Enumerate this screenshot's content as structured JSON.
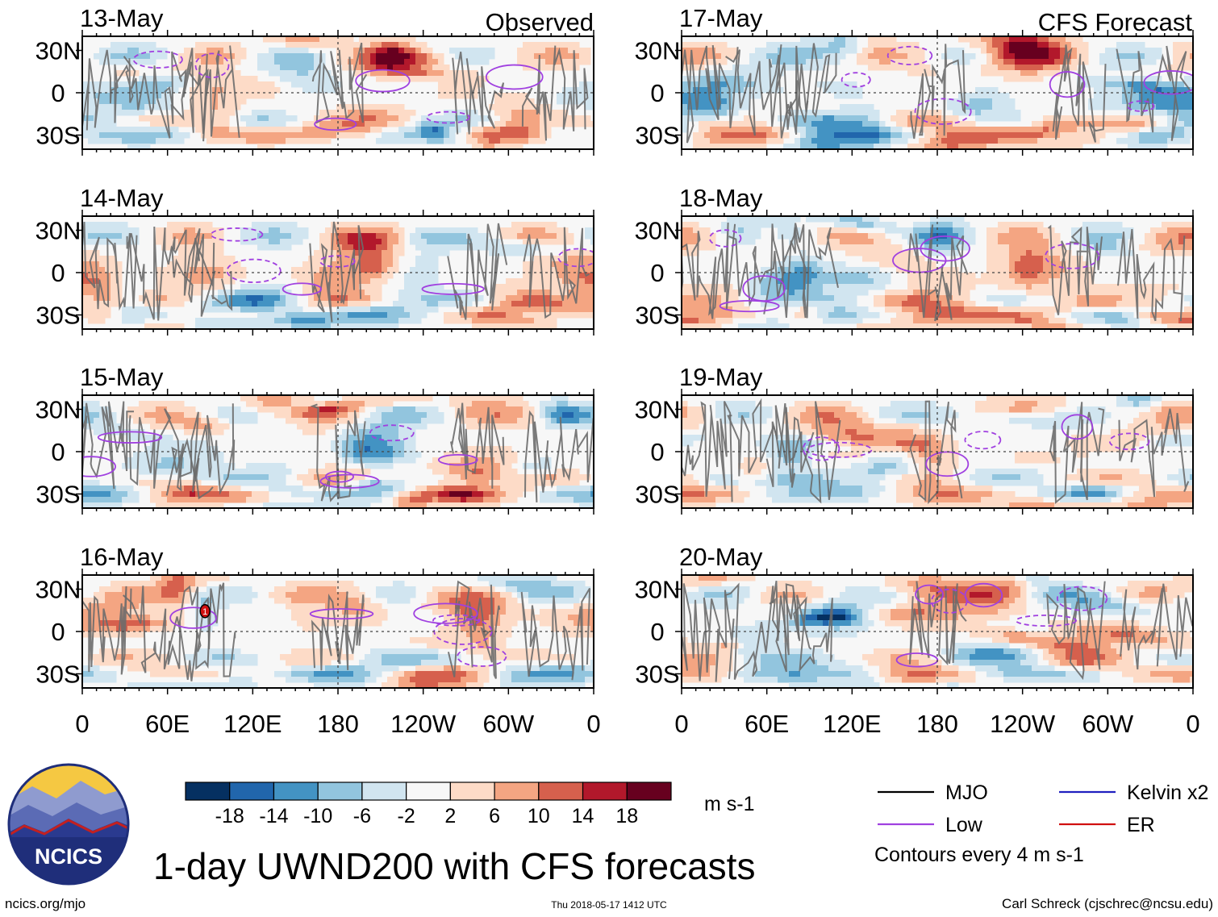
{
  "chart_data": {
    "type": "heatmap",
    "title": "1-day UWND200 with CFS forecasts",
    "variable": "UWND200",
    "units": "m s-1",
    "observed_label": "Observed",
    "forecast_label": "CFS Forecast",
    "x_ticks": [
      "0",
      "60E",
      "120E",
      "180",
      "120W",
      "60W",
      "0"
    ],
    "y_ticks": [
      "30N",
      "0",
      "30S"
    ],
    "x_range_deg": [
      0,
      360
    ],
    "y_range_deg": [
      -40,
      40
    ],
    "panels": [
      {
        "date": "13-May",
        "kind": "observed"
      },
      {
        "date": "14-May",
        "kind": "observed"
      },
      {
        "date": "15-May",
        "kind": "observed"
      },
      {
        "date": "16-May",
        "kind": "observed",
        "mjo_marker": "1"
      },
      {
        "date": "17-May",
        "kind": "forecast"
      },
      {
        "date": "18-May",
        "kind": "forecast"
      },
      {
        "date": "19-May",
        "kind": "forecast"
      },
      {
        "date": "20-May",
        "kind": "forecast"
      }
    ],
    "colorbar": {
      "colors": [
        "#053061",
        "#2166ac",
        "#4393c3",
        "#92c5de",
        "#d1e5f0",
        "#f7f7f7",
        "#fddbc7",
        "#f4a582",
        "#d6604d",
        "#b2182b",
        "#67001f"
      ],
      "tick_labels": [
        "-18",
        "-14",
        "-10",
        "-6",
        "-2",
        "2",
        "6",
        "10",
        "14",
        "18"
      ],
      "units": "m s-1"
    },
    "legend": [
      {
        "label": "MJO",
        "color": "#000000"
      },
      {
        "label": "Kelvin x2",
        "color": "#2020c0"
      },
      {
        "label": "Low",
        "color": "#a040e0"
      },
      {
        "label": "ER",
        "color": "#d01010"
      }
    ],
    "contour_note": "Contours every 4 m s-1"
  },
  "footer": {
    "left": "ncics.org/mjo",
    "center": "Thu 2018-05-17 1412 UTC",
    "right": "Carl Schreck (cjschrec@ncsu.edu)"
  },
  "logo": {
    "text": "NCICS",
    "colors": {
      "sky": "#f5c842",
      "mountain_far": "#8f9bcf",
      "mountain_mid": "#5b6bb5",
      "mountain_near": "#2a3a8f",
      "ridge": "#c42020"
    }
  }
}
